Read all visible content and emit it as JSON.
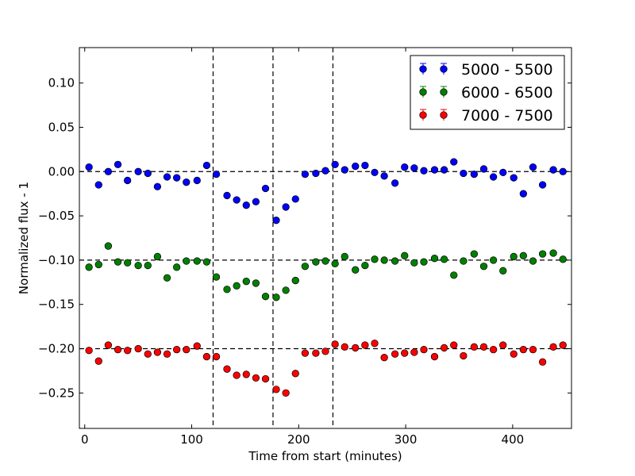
{
  "chart_data": {
    "type": "scatter",
    "title": "",
    "xlabel": "Time from start (minutes)",
    "ylabel": "Normalized flux - 1",
    "xlim": [
      -5,
      455
    ],
    "ylim": [
      -0.29,
      0.14
    ],
    "xticks": [
      0,
      100,
      200,
      300,
      400
    ],
    "xtick_labels": [
      "0",
      "100",
      "200",
      "300",
      "400"
    ],
    "yticks": [
      -0.25,
      -0.2,
      -0.15,
      -0.1,
      -0.05,
      0.0,
      0.05,
      0.1
    ],
    "ytick_labels": [
      "−0.25",
      "−0.20",
      "−0.15",
      "−0.10",
      "−0.05",
      "0.00",
      "0.05",
      "0.10"
    ],
    "grid": false,
    "legend_position": "top-right",
    "reference_lines": {
      "horizontal": [
        0.0,
        -0.1,
        -0.2
      ],
      "vertical": [
        120,
        176,
        232
      ]
    },
    "x": [
      4,
      13,
      22,
      31,
      40,
      50,
      59,
      68,
      77,
      86,
      95,
      105,
      114,
      123,
      133,
      142,
      151,
      160,
      169,
      179,
      188,
      197,
      206,
      216,
      225,
      234,
      243,
      253,
      262,
      271,
      280,
      290,
      299,
      308,
      317,
      327,
      336,
      345,
      354,
      364,
      373,
      382,
      391,
      401,
      410,
      419,
      428,
      438,
      447
    ],
    "series": [
      {
        "name": "5000 - 5500",
        "color": "#0000ff",
        "values": [
          0.005,
          -0.015,
          0.0,
          0.008,
          -0.01,
          0.0,
          -0.002,
          -0.017,
          -0.006,
          -0.007,
          -0.012,
          -0.01,
          0.007,
          -0.003,
          -0.027,
          -0.032,
          -0.038,
          -0.034,
          -0.019,
          -0.055,
          -0.04,
          -0.031,
          -0.003,
          -0.002,
          0.001,
          0.008,
          0.002,
          0.006,
          0.007,
          -0.001,
          -0.005,
          -0.013,
          0.005,
          0.004,
          0.001,
          0.002,
          0.002,
          0.011,
          -0.002,
          -0.003,
          0.003,
          -0.006,
          -0.001,
          -0.007,
          -0.025,
          0.005,
          -0.015,
          0.002,
          0.0
        ]
      },
      {
        "name": "6000 - 6500",
        "color": "#008000",
        "values": [
          -0.108,
          -0.105,
          -0.084,
          -0.102,
          -0.103,
          -0.106,
          -0.106,
          -0.096,
          -0.12,
          -0.108,
          -0.101,
          -0.101,
          -0.102,
          -0.119,
          -0.133,
          -0.129,
          -0.124,
          -0.126,
          -0.141,
          -0.142,
          -0.134,
          -0.123,
          -0.107,
          -0.102,
          -0.101,
          -0.104,
          -0.096,
          -0.111,
          -0.106,
          -0.099,
          -0.1,
          -0.101,
          -0.095,
          -0.103,
          -0.102,
          -0.098,
          -0.099,
          -0.117,
          -0.101,
          -0.093,
          -0.107,
          -0.1,
          -0.112,
          -0.096,
          -0.095,
          -0.101,
          -0.093,
          -0.092,
          -0.099
        ]
      },
      {
        "name": "7000 - 7500",
        "color": "#ff0000",
        "values": [
          -0.202,
          -0.214,
          -0.196,
          -0.201,
          -0.202,
          -0.2,
          -0.206,
          -0.204,
          -0.206,
          -0.201,
          -0.201,
          -0.197,
          -0.209,
          -0.209,
          -0.223,
          -0.23,
          -0.229,
          -0.233,
          -0.234,
          -0.246,
          -0.25,
          -0.228,
          -0.205,
          -0.205,
          -0.203,
          -0.195,
          -0.198,
          -0.199,
          -0.196,
          -0.194,
          -0.21,
          -0.206,
          -0.205,
          -0.204,
          -0.201,
          -0.209,
          -0.199,
          -0.196,
          -0.208,
          -0.198,
          -0.198,
          -0.201,
          -0.196,
          -0.206,
          -0.201,
          -0.201,
          -0.215,
          -0.198,
          -0.196
        ]
      }
    ]
  }
}
